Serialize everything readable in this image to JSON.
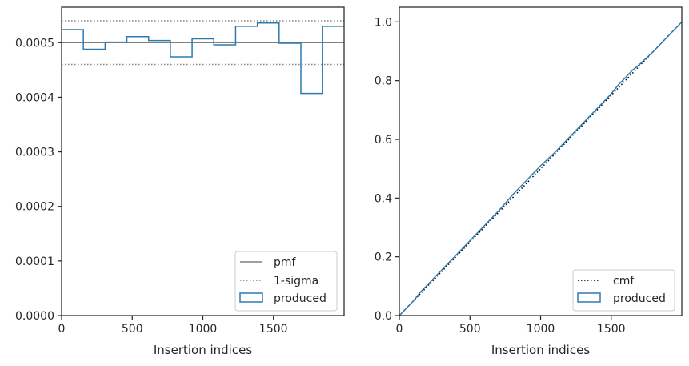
{
  "chart_data": [
    {
      "type": "step",
      "xlabel": "Insertion indices",
      "ylabel": "",
      "xlim": [
        0,
        2000
      ],
      "ylim": [
        0,
        0.000565
      ],
      "xticks": [
        0,
        500,
        1000,
        1500
      ],
      "xtick_labels": [
        "0",
        "500",
        "1000",
        "1500"
      ],
      "yticks": [
        0,
        0.0001,
        0.0002,
        0.0003,
        0.0004,
        0.0005
      ],
      "ytick_labels": [
        "0.0000",
        "0.0001",
        "0.0002",
        "0.0003",
        "0.0004",
        "0.0005"
      ],
      "bin_edges": [
        0,
        154,
        308,
        462,
        616,
        770,
        924,
        1078,
        1232,
        1386,
        1540,
        1694,
        1848,
        2000
      ],
      "series": [
        {
          "name": "pmf",
          "style": "solid",
          "color": "#808080",
          "value": 0.0005
        },
        {
          "name": "1-sigma",
          "style": "dotted",
          "color": "#808080",
          "values": [
            0.00046,
            0.00054
          ]
        },
        {
          "name": "produced",
          "style": "step",
          "color": "#2b7bb0",
          "values": [
            0.000524,
            0.000488,
            0.000501,
            0.000511,
            0.000504,
            0.000474,
            0.000507,
            0.000496,
            0.00053,
            0.000536,
            0.000499,
            0.000407,
            0.00053
          ]
        }
      ],
      "legend": {
        "position": "lower right",
        "entries": [
          "pmf",
          "1-sigma",
          "produced"
        ]
      },
      "grid": false
    },
    {
      "type": "line",
      "xlabel": "Insertion indices",
      "ylabel": "",
      "xlim": [
        0,
        2000
      ],
      "ylim": [
        0,
        1.05
      ],
      "xticks": [
        0,
        500,
        1000,
        1500
      ],
      "xtick_labels": [
        "0",
        "500",
        "1000",
        "1500"
      ],
      "yticks": [
        0,
        0.2,
        0.4,
        0.6,
        0.8,
        1.0
      ],
      "ytick_labels": [
        "0.0",
        "0.2",
        "0.4",
        "0.6",
        "0.8",
        "1.0"
      ],
      "series": [
        {
          "name": "cmf",
          "style": "dotted",
          "color": "#000000",
          "x": [
            0,
            2000
          ],
          "y": [
            0,
            1.0
          ]
        },
        {
          "name": "produced",
          "style": "solid",
          "color": "#2b7bb0",
          "x": [
            0,
            50,
            100,
            150,
            200,
            300,
            400,
            500,
            600,
            700,
            800,
            850,
            900,
            1000,
            1100,
            1200,
            1300,
            1400,
            1500,
            1550,
            1600,
            1650,
            1700,
            1800,
            1900,
            2000
          ],
          "y": [
            0,
            0.025,
            0.05,
            0.08,
            0.105,
            0.155,
            0.205,
            0.255,
            0.305,
            0.355,
            0.41,
            0.435,
            0.46,
            0.51,
            0.555,
            0.605,
            0.655,
            0.705,
            0.755,
            0.785,
            0.81,
            0.835,
            0.855,
            0.9,
            0.95,
            1.0
          ]
        }
      ],
      "legend": {
        "position": "lower right",
        "entries": [
          "cmf",
          "produced"
        ]
      },
      "grid": false
    }
  ]
}
